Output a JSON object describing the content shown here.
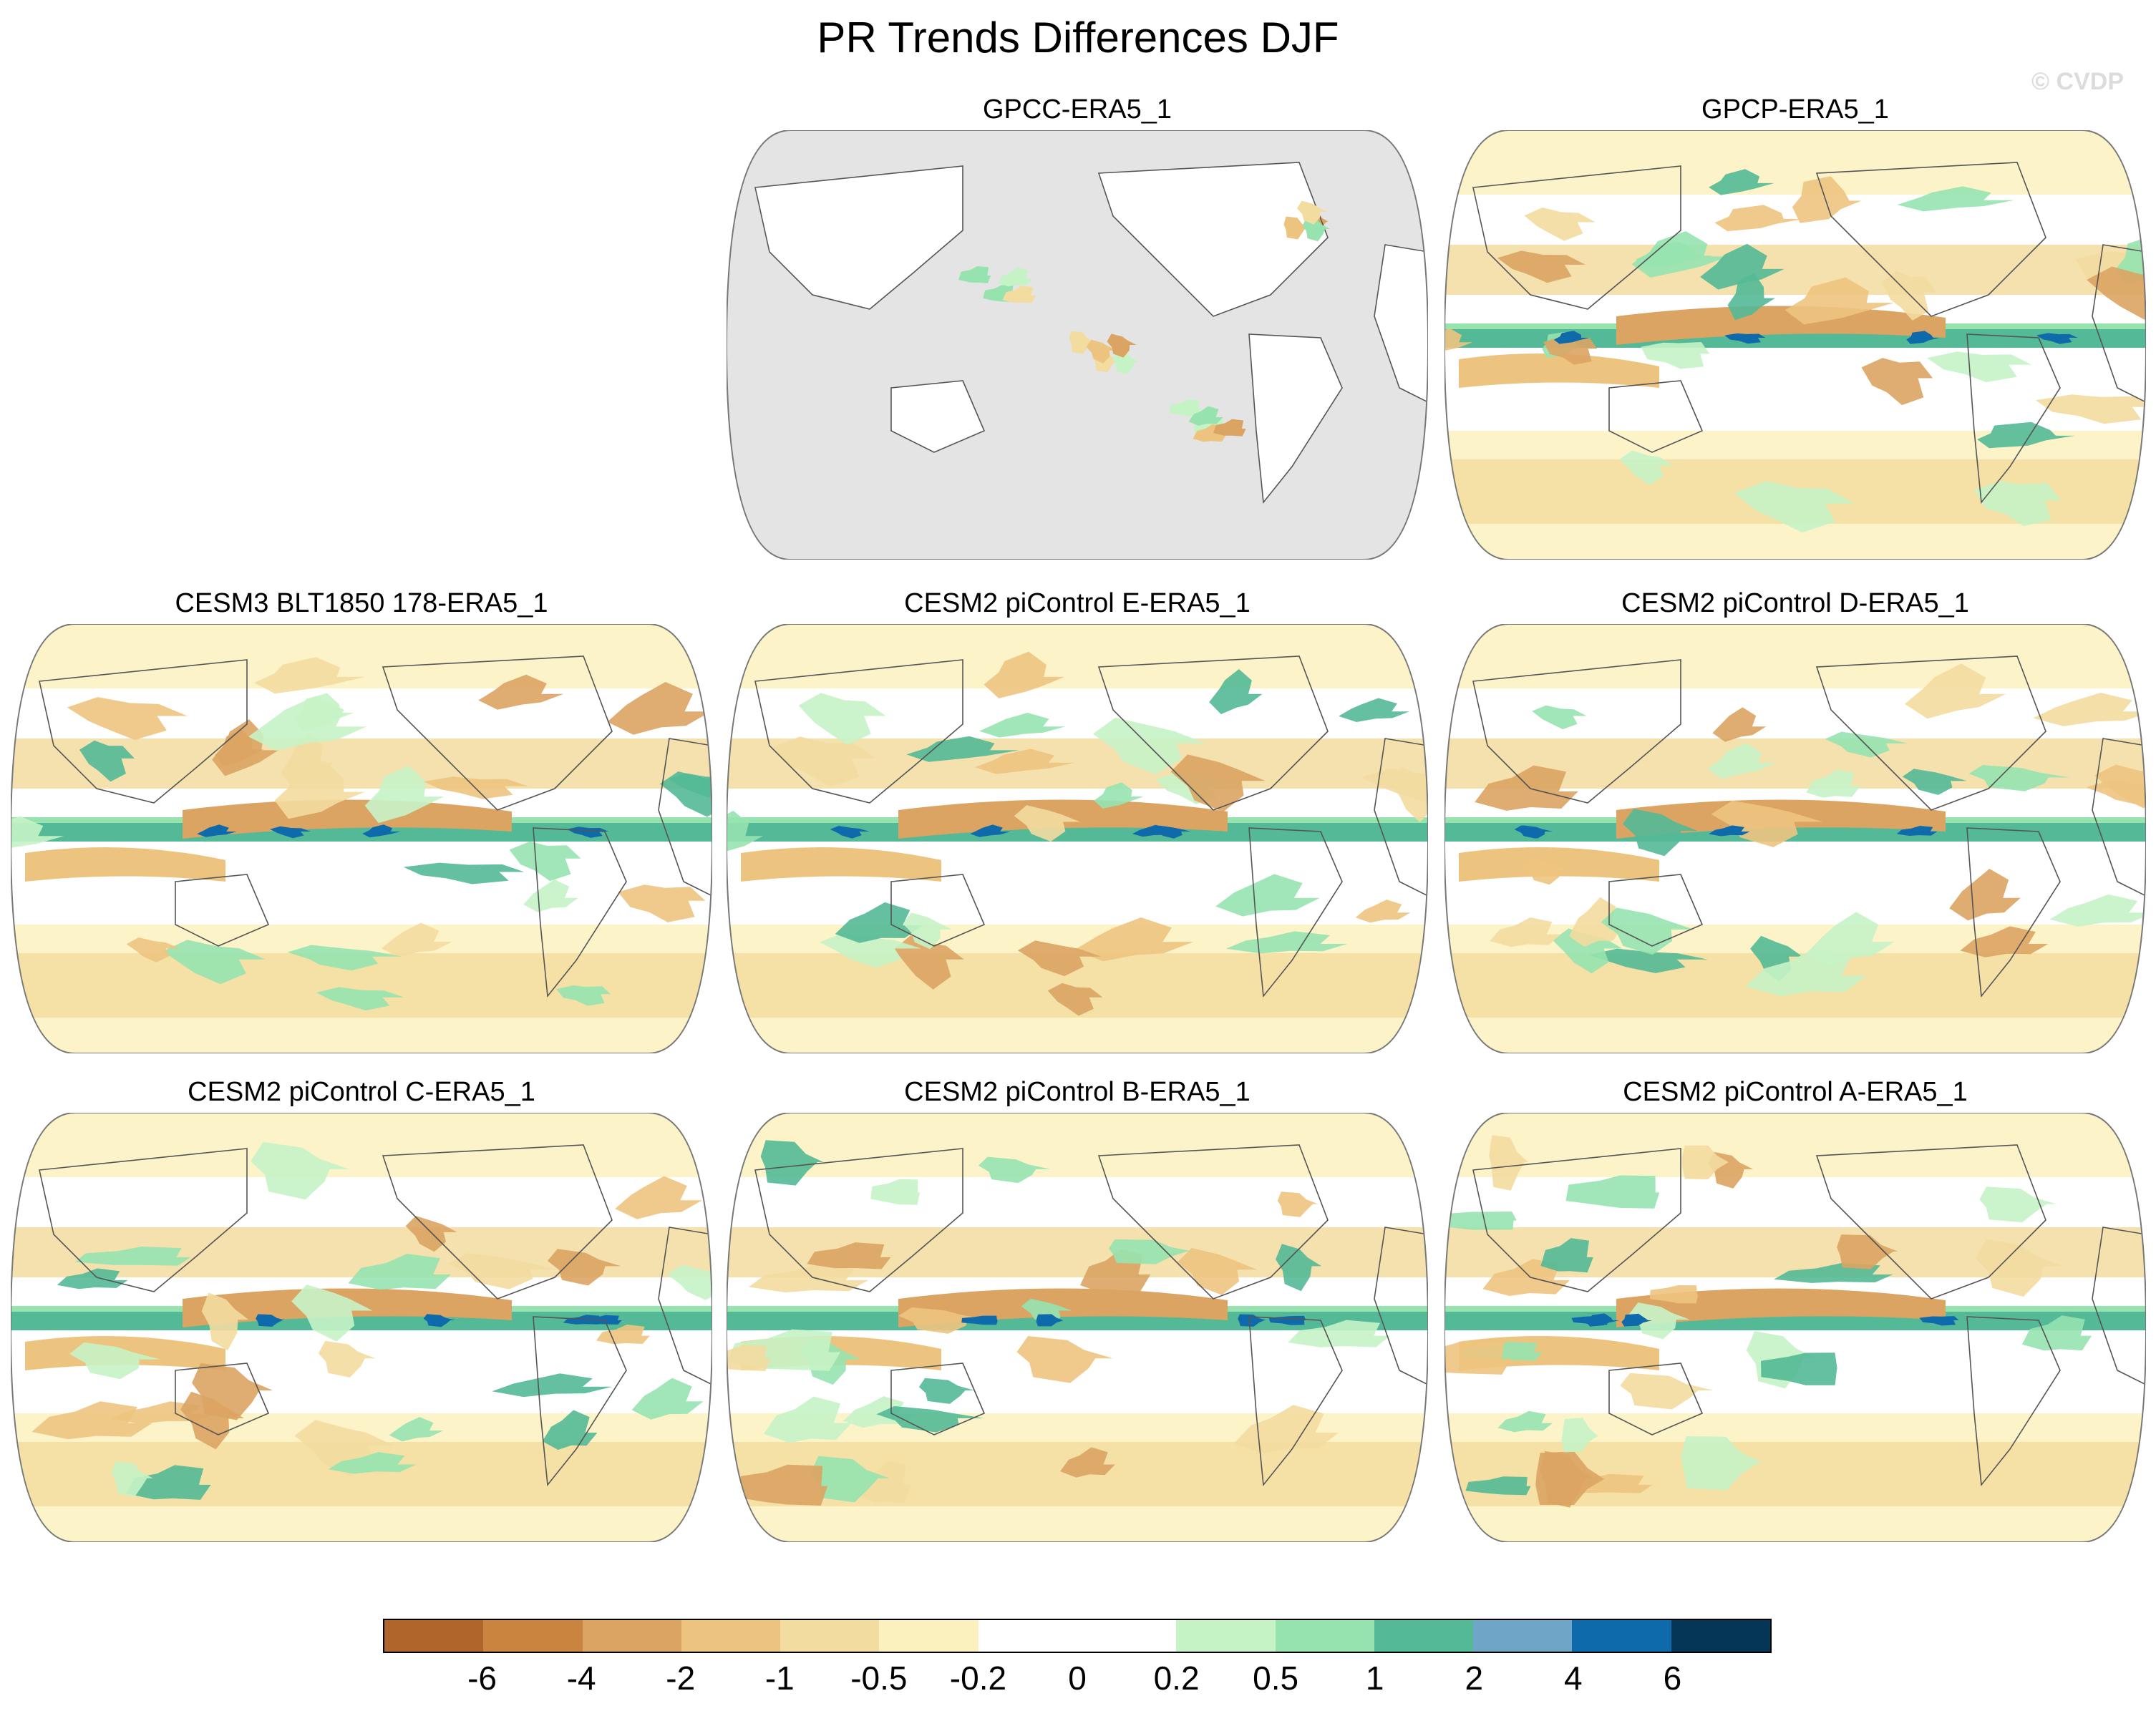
{
  "title": "PR Trends Differences DJF",
  "credit": "© CVDP",
  "chart_data": {
    "type": "heatmap",
    "title": "PR Trends Differences DJF",
    "projection": "robinson-like, centered on Pacific",
    "panels": [
      {
        "title": "GPCC-ERA5_1",
        "row": 0,
        "col": 1,
        "land_only": true
      },
      {
        "title": "GPCP-ERA5_1",
        "row": 0,
        "col": 2,
        "land_only": false
      },
      {
        "title": "CESM3 BLT1850 178-ERA5_1",
        "row": 1,
        "col": 0,
        "land_only": false
      },
      {
        "title": "CESM2 piControl E-ERA5_1",
        "row": 1,
        "col": 1,
        "land_only": false
      },
      {
        "title": "CESM2 piControl D-ERA5_1",
        "row": 1,
        "col": 2,
        "land_only": false
      },
      {
        "title": "CESM2 piControl C-ERA5_1",
        "row": 2,
        "col": 0,
        "land_only": false
      },
      {
        "title": "CESM2 piControl B-ERA5_1",
        "row": 2,
        "col": 1,
        "land_only": false
      },
      {
        "title": "CESM2 piControl A-ERA5_1",
        "row": 2,
        "col": 2,
        "land_only": false
      }
    ],
    "colorbar": {
      "labels": [
        "-6",
        "-4",
        "-2",
        "-1",
        "-0.5",
        "-0.2",
        "0",
        "0.2",
        "0.5",
        "1",
        "2",
        "4",
        "6"
      ],
      "colors": [
        "#b0652a",
        "#c98440",
        "#dba463",
        "#edc47f",
        "#f3dca0",
        "#fbf1bf",
        "#ffffff",
        "#ffffff",
        "#c6f3c6",
        "#96e3b0",
        "#53b996",
        "#6fa5c6",
        "#0f6aab",
        "#053657"
      ]
    }
  }
}
